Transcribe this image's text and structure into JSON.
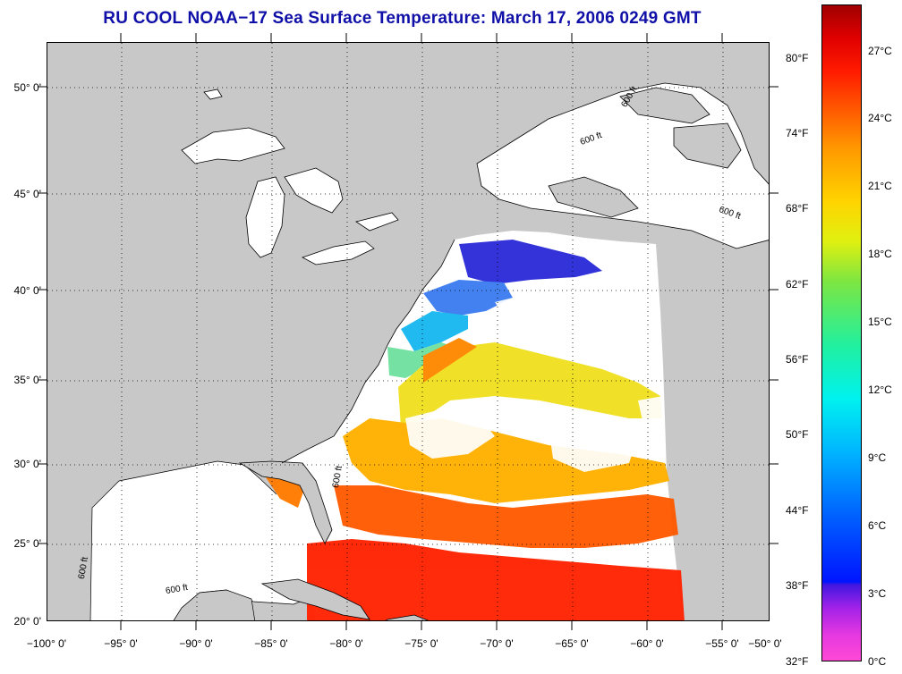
{
  "title": "RU COOL  NOAA−17  Sea Surface Temperature:  March 17, 2006 0249 GMT",
  "map": {
    "lat_labels": [
      "50° 0'",
      "45° 0'",
      "40° 0'",
      "35° 0'",
      "30° 0'",
      "25° 0'",
      "20° 0'"
    ],
    "lon_labels": [
      "−100° 0'",
      "−95° 0'",
      "−90° 0'",
      "−85° 0'",
      "−80° 0'",
      "−75° 0'",
      "−70° 0'",
      "−65° 0'",
      "−60° 0'",
      "−55° 0'",
      "−50° 0'"
    ],
    "contour_label": "600 ft",
    "land_color": "#c8c8c8",
    "cloud_color": "#ffffff"
  },
  "colorbar": {
    "fahrenheit_labels": [
      "80°F",
      "74°F",
      "68°F",
      "62°F",
      "56°F",
      "50°F",
      "44°F",
      "38°F",
      "32°F"
    ],
    "celsius_labels": [
      "27°C",
      "24°C",
      "21°C",
      "18°C",
      "15°C",
      "12°C",
      "9°C",
      "6°C",
      "3°C",
      "0°C"
    ]
  }
}
